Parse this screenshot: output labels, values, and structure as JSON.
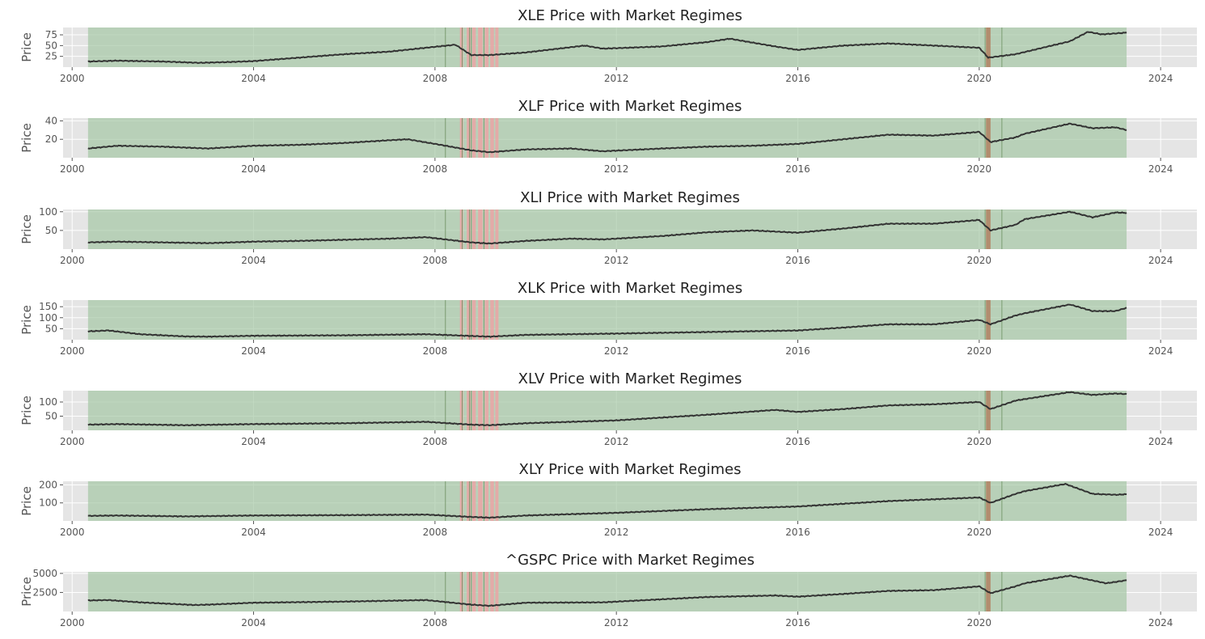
{
  "chart_data": {
    "type": "line",
    "shared": {
      "xlim": [
        1999.8,
        2024.8
      ],
      "x_ticks": [
        2000,
        2004,
        2008,
        2012,
        2016,
        2020,
        2024
      ],
      "x_tick_labels": [
        "2000",
        "2004",
        "2008",
        "2012",
        "2016",
        "2020",
        "2024"
      ],
      "data_range": [
        2000.35,
        2023.25
      ],
      "grid": true,
      "regimes": {
        "background": {
          "start": 2000.35,
          "end": 2023.25,
          "color": "#9fc59f"
        },
        "bear_bands": [
          {
            "start": 2008.55,
            "end": 2008.62
          },
          {
            "start": 2008.7,
            "end": 2008.78
          },
          {
            "start": 2008.82,
            "end": 2008.9
          },
          {
            "start": 2008.95,
            "end": 2009.05
          },
          {
            "start": 2009.1,
            "end": 2009.18
          },
          {
            "start": 2009.22,
            "end": 2009.3
          },
          {
            "start": 2009.33,
            "end": 2009.4
          },
          {
            "start": 2020.15,
            "end": 2020.25
          }
        ],
        "transition_lines": [
          2008.23,
          2008.6,
          2008.76,
          2008.8,
          2009.08,
          2020.13,
          2020.5
        ],
        "bear_color": "#e8a6a6",
        "transition_color": "#6b8f5e",
        "covid_color": "#b08060"
      },
      "line_color": "#333333"
    },
    "panels": [
      {
        "title": "XLE Price with Market Regimes",
        "ylabel": "Price",
        "ylim": [
          0,
          92
        ],
        "y_ticks": [
          25,
          50,
          75
        ],
        "y_tick_labels": [
          "25",
          "50",
          "75"
        ],
        "x": [
          2000.35,
          2001.0,
          2002.0,
          2002.8,
          2003.5,
          2004.0,
          2005.0,
          2006.0,
          2007.0,
          2007.8,
          2008.45,
          2008.8,
          2009.2,
          2010.0,
          2011.3,
          2011.7,
          2012.0,
          2013.0,
          2014.0,
          2014.5,
          2015.5,
          2016.0,
          2017.0,
          2018.0,
          2019.0,
          2020.0,
          2020.2,
          2020.8,
          2021.0,
          2022.0,
          2022.4,
          2022.7,
          2023.25
        ],
        "y": [
          13,
          15,
          13,
          10,
          12,
          14,
          22,
          30,
          36,
          45,
          52,
          28,
          28,
          34,
          50,
          43,
          44,
          48,
          58,
          66,
          48,
          40,
          50,
          55,
          50,
          45,
          22,
          30,
          35,
          60,
          82,
          76,
          80
        ]
      },
      {
        "title": "XLF Price with Market Regimes",
        "ylabel": "Price",
        "ylim": [
          0,
          43
        ],
        "y_ticks": [
          20,
          40
        ],
        "y_tick_labels": [
          "20",
          "40"
        ],
        "x": [
          2000.35,
          2001.0,
          2002.0,
          2003.0,
          2004.0,
          2005.0,
          2006.0,
          2007.0,
          2007.4,
          2008.0,
          2008.8,
          2009.2,
          2010.0,
          2011.0,
          2011.7,
          2013.0,
          2014.0,
          2015.0,
          2016.0,
          2016.8,
          2018.0,
          2019.0,
          2020.0,
          2020.25,
          2020.8,
          2021.0,
          2022.0,
          2022.5,
          2023.0,
          2023.25
        ],
        "y": [
          10,
          13,
          12,
          10,
          13,
          14,
          16,
          19,
          20,
          15,
          8,
          6,
          9,
          10,
          7,
          10,
          12,
          13,
          15,
          19,
          25,
          24,
          28,
          17,
          22,
          26,
          37,
          32,
          33,
          30
        ]
      },
      {
        "title": "XLI Price with Market Regimes",
        "ylabel": "Price",
        "ylim": [
          0,
          106
        ],
        "y_ticks": [
          50,
          100
        ],
        "y_tick_labels": [
          "50",
          "100"
        ],
        "x": [
          2000.35,
          2001.0,
          2002.0,
          2003.0,
          2004.0,
          2005.0,
          2006.0,
          2007.0,
          2007.8,
          2008.8,
          2009.2,
          2010.0,
          2011.0,
          2011.7,
          2013.0,
          2014.0,
          2015.0,
          2016.0,
          2017.0,
          2018.0,
          2019.0,
          2020.0,
          2020.25,
          2020.8,
          2021.0,
          2022.0,
          2022.5,
          2023.0,
          2023.25
        ],
        "y": [
          18,
          20,
          18,
          16,
          20,
          22,
          25,
          28,
          32,
          18,
          15,
          22,
          28,
          26,
          35,
          45,
          50,
          44,
          55,
          68,
          68,
          78,
          50,
          65,
          80,
          100,
          85,
          98,
          97
        ]
      },
      {
        "title": "XLK Price with Market Regimes",
        "ylabel": "Price",
        "ylim": [
          0,
          180
        ],
        "y_ticks": [
          50,
          100,
          150
        ],
        "y_tick_labels": [
          "50",
          "100",
          "150"
        ],
        "x": [
          2000.35,
          2000.8,
          2001.5,
          2002.5,
          2003.0,
          2004.0,
          2006.0,
          2007.8,
          2008.8,
          2009.2,
          2010.0,
          2012.0,
          2014.0,
          2016.0,
          2017.0,
          2018.0,
          2019.0,
          2020.0,
          2020.25,
          2020.8,
          2021.0,
          2022.0,
          2022.5,
          2023.0,
          2023.25
        ],
        "y": [
          38,
          42,
          25,
          15,
          14,
          18,
          20,
          25,
          17,
          14,
          22,
          28,
          35,
          42,
          55,
          70,
          70,
          90,
          70,
          110,
          120,
          160,
          130,
          130,
          145
        ]
      },
      {
        "title": "XLV Price with Market Regimes",
        "ylabel": "Price",
        "ylim": [
          0,
          140
        ],
        "y_ticks": [
          50,
          100
        ],
        "y_tick_labels": [
          "50",
          "100"
        ],
        "x": [
          2000.35,
          2001.0,
          2002.5,
          2004.0,
          2006.0,
          2007.8,
          2008.8,
          2009.2,
          2010.0,
          2012.0,
          2014.0,
          2015.5,
          2016.0,
          2017.0,
          2018.0,
          2019.0,
          2020.0,
          2020.25,
          2020.8,
          2021.0,
          2022.0,
          2022.5,
          2023.0,
          2023.25
        ],
        "y": [
          20,
          22,
          18,
          22,
          25,
          30,
          20,
          18,
          25,
          35,
          55,
          72,
          65,
          75,
          88,
          92,
          100,
          75,
          105,
          110,
          135,
          125,
          130,
          128
        ]
      },
      {
        "title": "XLY Price with Market Regimes",
        "ylabel": "Price",
        "ylim": [
          0,
          220
        ],
        "y_ticks": [
          100,
          200
        ],
        "y_tick_labels": [
          "100",
          "200"
        ],
        "x": [
          2000.35,
          2001.0,
          2002.5,
          2004.0,
          2006.0,
          2007.8,
          2008.8,
          2009.2,
          2010.0,
          2012.0,
          2014.0,
          2016.0,
          2017.0,
          2018.0,
          2019.0,
          2020.0,
          2020.25,
          2020.8,
          2021.0,
          2021.9,
          2022.5,
          2023.0,
          2023.25
        ],
        "y": [
          28,
          30,
          25,
          30,
          32,
          35,
          22,
          18,
          30,
          45,
          65,
          80,
          95,
          110,
          120,
          130,
          100,
          150,
          165,
          205,
          150,
          145,
          148
        ]
      },
      {
        "title": "^GSPC Price with Market Regimes",
        "ylabel": "Price",
        "ylim": [
          0,
          5200
        ],
        "y_ticks": [
          2500,
          5000
        ],
        "y_tick_labels": [
          "2500",
          "5000"
        ],
        "x": [
          2000.35,
          2000.8,
          2001.5,
          2002.7,
          2003.0,
          2004.0,
          2006.0,
          2007.8,
          2008.8,
          2009.2,
          2010.0,
          2011.7,
          2013.0,
          2014.0,
          2015.5,
          2016.0,
          2017.0,
          2018.0,
          2019.0,
          2020.0,
          2020.25,
          2020.8,
          2021.0,
          2022.0,
          2022.8,
          2023.25
        ],
        "y": [
          1450,
          1500,
          1200,
          850,
          900,
          1150,
          1300,
          1500,
          900,
          750,
          1150,
          1200,
          1600,
          1900,
          2100,
          1950,
          2300,
          2700,
          2800,
          3300,
          2400,
          3300,
          3700,
          4700,
          3700,
          4100
        ]
      }
    ]
  }
}
